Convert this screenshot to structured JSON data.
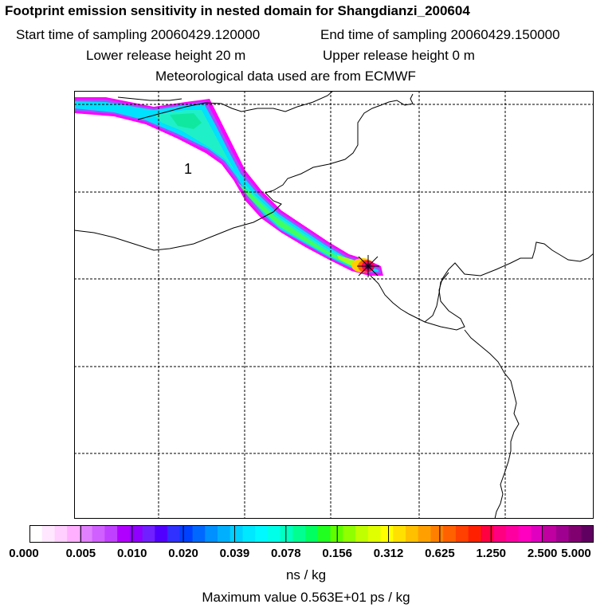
{
  "header": {
    "title": "Footprint emission sensitivity in nested domain for Shangdianzi_200604",
    "start_label": "Start time of sampling 20060429.120000",
    "end_label": "End time of sampling 20060429.150000",
    "lower_height_label": "Lower release height   20 m",
    "upper_height_label": "Upper release height    0 m",
    "met_label": "Meteorological data used are from ECMWF"
  },
  "map": {
    "contour_label": "1",
    "plume_colors": [
      "#ff00ff",
      "#a050ff",
      "#00e0ff",
      "#20f0c8",
      "#10e8a0",
      "#40ff60",
      "#a0ff20",
      "#ffd000",
      "#ff6000",
      "#ff0060",
      "#800080"
    ]
  },
  "colorbar": {
    "tick_labels": [
      "0.000",
      "0.005",
      "0.010",
      "0.020",
      "0.039",
      "0.078",
      "0.156",
      "0.312",
      "0.625",
      "1.250",
      "2.500",
      "5.000"
    ],
    "colors": [
      "#ffffff",
      "#ffe8ff",
      "#ffd0ff",
      "#ffb0ff",
      "#e080ff",
      "#d060ff",
      "#c040ff",
      "#b000ff",
      "#9000ff",
      "#7020ff",
      "#5000ff",
      "#3030ff",
      "#0040ff",
      "#0068ff",
      "#0090ff",
      "#00b0ff",
      "#00d0ff",
      "#00e8ff",
      "#00f8ff",
      "#00ffe8",
      "#00ffc0",
      "#00ff90",
      "#00ff60",
      "#20ff20",
      "#60ff00",
      "#90ff00",
      "#c0ff00",
      "#e0ff00",
      "#ffff00",
      "#ffe000",
      "#ffc000",
      "#ffa000",
      "#ff8000",
      "#ff6000",
      "#ff4000",
      "#ff2000",
      "#ff0040",
      "#ff0080",
      "#ff00a0",
      "#ff00c0",
      "#e000c0",
      "#c000a0",
      "#a00090",
      "#800070",
      "#600060"
    ],
    "units": "ns / kg",
    "max_label": "Maximum value  0.563E+01 ps / kg"
  }
}
